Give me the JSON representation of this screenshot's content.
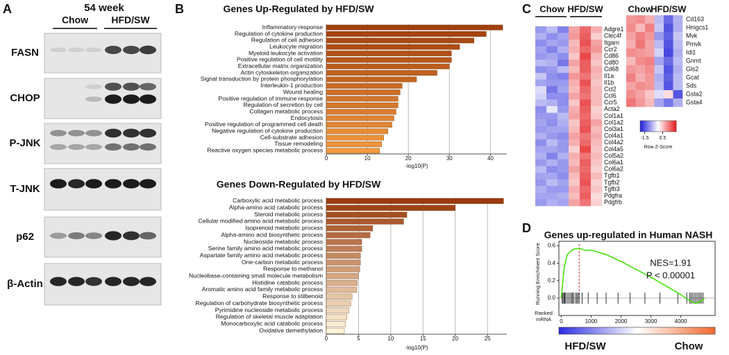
{
  "panel_labels": [
    "A",
    "B",
    "C",
    "D"
  ],
  "blot": {
    "title": "54 week",
    "groups": [
      "Chow",
      "HFD/SW"
    ],
    "rows": [
      "FASN",
      "CHOP",
      "P-JNK",
      "T-JNK",
      "p62",
      "β-Actin"
    ]
  },
  "chart_data": [
    {
      "type": "hbar",
      "title": "Genes Up-Regulated by HFD/SW",
      "x_label": "-log10(P)",
      "categories": [
        "Inflammatory response",
        "Regulation of cytokine production",
        "Regulation of cell adhesion",
        "Leukocyte migration",
        "Myeloid leukocyte activation",
        "Positive regulation of cell motility",
        "Extracellular matrix organization",
        "Actin cytoskeleton organization",
        "Signal transduction by protein phosphorylation",
        "Interleukin-1 production",
        "Wound healing",
        "Positive regulation of immune response",
        "Regulation of secretion by cell",
        "Collagen metabolic process",
        "Endocytosis",
        "Positive regulation of programmed cell death",
        "Negative regulation of cytokine production",
        "Cell-substrate adhesion",
        "Tissue remodeling",
        "Reactive oxygen species metabolic process"
      ],
      "values": [
        43,
        39,
        36,
        32.5,
        30.5,
        30.5,
        30,
        27,
        22,
        18.5,
        18,
        17.5,
        17.5,
        17,
        16.5,
        16,
        15,
        14,
        13.5,
        13
      ],
      "color_range": [
        "#a13f0e",
        "#f39a3e"
      ],
      "xlim": [
        0,
        44
      ],
      "xticks": [
        0,
        10,
        20,
        30,
        40
      ],
      "grid": true
    },
    {
      "type": "hbar",
      "title": "Genes Down-Regulated by HFD/SW",
      "x_label": "-log10(P)",
      "categories": [
        "Carboxylic acid metabolic process",
        "Alpha-amino acid catabolic process",
        "Steroid metabolic process",
        "Cellular modified amino acid metabolic process",
        "Isoprenoid metabolic process",
        "Alpha-amino acid biosynthetic process",
        "Nucleoside metabolic process",
        "Serine family amino acid metabolic process",
        "Aspartate family amino acid metabolic process",
        "One-carbon metabolic process",
        "Response to methanol",
        "Nucleobase-containing small molecule metabolism",
        "Histidine catabolic process",
        "Aromatic amino acid family metabolic process",
        "Response to stilbenoid",
        "Regulation of carbohydrate biosynthetic process",
        "Pyrimidine nucleoside metabolic process",
        "Regulation of skeletal muscle adaptation",
        "Monocarboxylic acid catabolic process",
        "Oxidative demethylation"
      ],
      "values": [
        27.5,
        20,
        12.5,
        12,
        7.2,
        6.8,
        5.5,
        5.5,
        5.3,
        5.3,
        5.2,
        5,
        4.8,
        4.7,
        4,
        3.8,
        3.5,
        3.2,
        3,
        2.8
      ],
      "color_range": [
        "#9b3a0c",
        "#fdf6dc"
      ],
      "xlim": [
        0,
        28
      ],
      "xticks": [
        0,
        5,
        10,
        15,
        20,
        25
      ],
      "grid": true
    },
    {
      "type": "line",
      "title": "Genes up-regulated in Human NASH",
      "y_label": "Running Enrichment Score",
      "x_label": "Ranked mRNA",
      "x": [
        0,
        100,
        200,
        400,
        600,
        800,
        1000,
        1500,
        2000,
        2500,
        3000,
        3500,
        4000,
        4300,
        4500,
        4700,
        4800
      ],
      "series": [
        {
          "color": "#3ee000",
          "values": [
            0,
            0.35,
            0.5,
            0.56,
            0.57,
            0.55,
            0.55,
            0.5,
            0.42,
            0.33,
            0.24,
            0.14,
            0.04,
            -0.03,
            -0.06,
            -0.03,
            0
          ]
        }
      ],
      "xlim": [
        -80,
        5150
      ],
      "xticks": [
        0,
        1000,
        2000,
        3000,
        4000
      ],
      "ylim": [
        -0.08,
        0.62
      ],
      "yticks": [
        {
          "value": 0,
          "label": "0.0"
        },
        {
          "value": 0.2,
          "label": "0.2"
        },
        {
          "value": 0.4,
          "label": "0.4"
        },
        {
          "value": 0.6,
          "label": "0.6"
        }
      ],
      "marker_x": 600,
      "marker_color": "#e03030",
      "hits": [
        30,
        60,
        90,
        120,
        150,
        200,
        250,
        300,
        350,
        380,
        420,
        480,
        520,
        560,
        600,
        700,
        900,
        1200,
        1500,
        1900,
        2300,
        2800,
        3300,
        3900,
        4200,
        4300,
        4350,
        4400,
        4450,
        4500,
        4550,
        4600,
        4650,
        4700,
        4750
      ],
      "annotations": [
        "NES=1.91",
        "P < 0.00001"
      ],
      "gradient_labels": [
        "HFD/SW",
        "Chow"
      ],
      "gradient_colors": [
        "#2a2ae0",
        "#ffffff",
        "#f06a30"
      ]
    }
  ],
  "heatmaps": [
    {
      "groups": [
        "Chow",
        "HFD/SW"
      ],
      "genes": [
        "Adgre1",
        "Clec4f",
        "Itgam",
        "Ccr2",
        "Cd86",
        "Cd80",
        "Cd68",
        "Il1a",
        "Il1b",
        "Ccl2",
        "Ccl6",
        "Ccr5",
        "Acta2",
        "Col1a1",
        "Col1a2",
        "Col3a1",
        "Col4a1",
        "Col4a2",
        "Col4a5",
        "Col5a2",
        "Col6a1",
        "Col6a2",
        "Tgfb1",
        "Tgfb2",
        "Tgfb3",
        "Pdgfra",
        "Pdgfrb"
      ],
      "values": [
        [
          -0.9,
          -0.6,
          -1.1,
          0.8,
          1.3,
          0.7
        ],
        [
          -0.7,
          -1.0,
          -0.8,
          0.9,
          1.4,
          0.4
        ],
        [
          -1.0,
          -0.8,
          -0.9,
          0.6,
          1.5,
          0.8
        ],
        [
          -0.8,
          -1.1,
          -0.7,
          0.7,
          1.3,
          0.9
        ],
        [
          -0.9,
          -0.8,
          -1.0,
          0.5,
          1.6,
          0.6
        ],
        [
          -0.6,
          -0.7,
          -1.2,
          0.8,
          1.4,
          0.5
        ],
        [
          -1.0,
          -0.9,
          -0.6,
          0.6,
          1.4,
          0.7
        ],
        [
          -0.5,
          -1.0,
          -1.1,
          0.9,
          1.2,
          0.6
        ],
        [
          -0.8,
          -0.9,
          -0.9,
          0.7,
          1.5,
          0.5
        ],
        [
          -0.3,
          -1.2,
          -0.8,
          0.6,
          1.3,
          0.6
        ],
        [
          -0.4,
          -1.0,
          -1.0,
          0.8,
          1.2,
          0.6
        ],
        [
          -0.6,
          -0.7,
          -1.0,
          0.5,
          1.5,
          0.6
        ],
        [
          -1.0,
          -0.2,
          -0.9,
          0.7,
          1.4,
          0.4
        ],
        [
          -0.9,
          -0.9,
          -0.6,
          0.8,
          1.3,
          0.5
        ],
        [
          -0.8,
          -1.0,
          -0.7,
          0.5,
          1.4,
          0.8
        ],
        [
          -0.9,
          -0.8,
          -0.8,
          0.6,
          1.5,
          0.6
        ],
        [
          -0.7,
          -0.9,
          -1.0,
          0.8,
          1.2,
          0.7
        ],
        [
          -1.0,
          -0.6,
          -0.9,
          0.7,
          1.3,
          0.6
        ],
        [
          -0.8,
          -0.8,
          -0.9,
          0.4,
          1.6,
          0.5
        ],
        [
          -0.7,
          -1.1,
          -0.7,
          0.7,
          1.2,
          0.6
        ],
        [
          -0.9,
          -0.7,
          -0.9,
          0.6,
          1.4,
          0.5
        ],
        [
          -0.6,
          -1.0,
          -0.9,
          0.8,
          1.3,
          0.4
        ],
        [
          -0.8,
          -0.8,
          -1.0,
          0.6,
          1.4,
          0.6
        ],
        [
          -0.9,
          -0.6,
          -0.8,
          0.5,
          1.5,
          0.4
        ],
        [
          -0.7,
          -0.9,
          -0.9,
          0.7,
          1.3,
          0.5
        ],
        [
          -0.8,
          -0.8,
          -0.7,
          0.6,
          1.4,
          0.3
        ],
        [
          -0.9,
          -0.7,
          -0.8,
          0.8,
          1.2,
          0.4
        ]
      ]
    },
    {
      "groups": [
        "Chow",
        "HFD/SW"
      ],
      "genes": [
        "Cd163",
        "Hmgcs1",
        "Mvk",
        "Pmvk",
        "Idi1",
        "Gnmt",
        "Gls2",
        "Gcat",
        "Sds",
        "Gsta2",
        "Gsta4"
      ],
      "values": [
        [
          0.9,
          1.0,
          0.7,
          -0.6,
          -1.3,
          -0.7
        ],
        [
          1.0,
          0.6,
          1.1,
          -0.5,
          -1.5,
          -0.7
        ],
        [
          0.8,
          1.1,
          0.9,
          -0.9,
          -1.4,
          -0.5
        ],
        [
          0.7,
          1.2,
          0.8,
          -0.6,
          -1.5,
          -0.6
        ],
        [
          1.0,
          0.9,
          0.8,
          -0.4,
          -1.6,
          -0.7
        ],
        [
          0.6,
          1.0,
          1.1,
          -0.8,
          -1.3,
          -0.6
        ],
        [
          0.9,
          0.8,
          1.0,
          -0.5,
          -1.5,
          -0.7
        ],
        [
          1.1,
          0.7,
          0.9,
          -0.7,
          -1.4,
          -0.6
        ],
        [
          0.8,
          1.0,
          0.9,
          -0.6,
          -1.5,
          -0.6
        ],
        [
          1.0,
          0.8,
          0.5,
          -0.3,
          0.3,
          -1.5
        ],
        [
          1.2,
          0.9,
          0.6,
          -0.8,
          -1.2,
          -0.7
        ]
      ]
    }
  ],
  "heatmap_scale": {
    "label": "Row Z-Score",
    "ticks": [
      -1.5,
      0.5
    ],
    "zlim": [
      -2,
      2
    ],
    "colors": [
      "#1c1cd8",
      "#ffffff",
      "#e41a1c"
    ]
  }
}
